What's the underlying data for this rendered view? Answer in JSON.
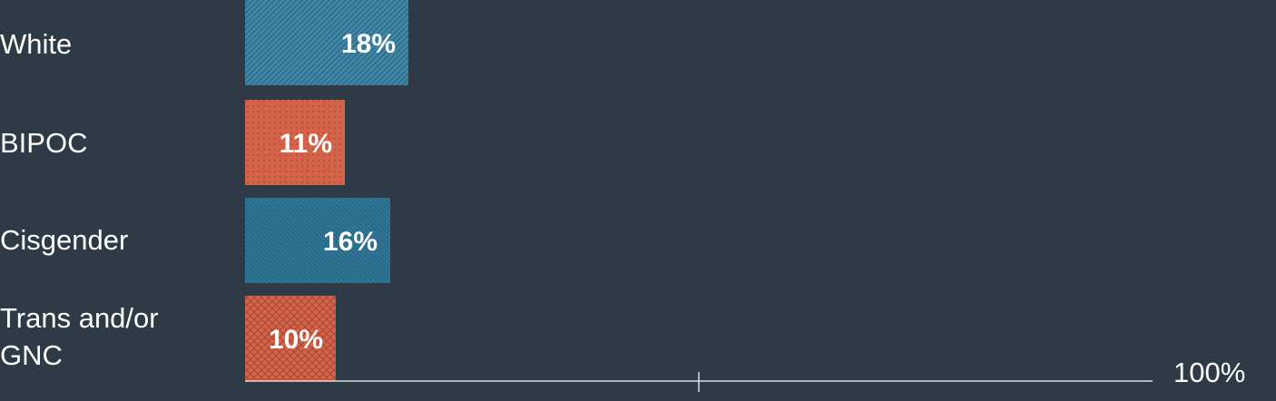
{
  "chart_data": {
    "type": "bar",
    "orientation": "horizontal",
    "categories": [
      "White",
      "BIPOC",
      "Cisgender",
      "Trans and/or GNC"
    ],
    "values": [
      18,
      11,
      16,
      10
    ],
    "value_labels": [
      "18%",
      "11%",
      "16%",
      "10%"
    ],
    "xlim": [
      0,
      100
    ],
    "x_end_label": "100%",
    "grid": false,
    "legend": "none",
    "colors": {
      "background": "#2e3a46",
      "blue_bar": "#2f7596",
      "orange_bar": "#d4634a",
      "axis": "#d8dde2",
      "text": "#ffffff"
    }
  }
}
